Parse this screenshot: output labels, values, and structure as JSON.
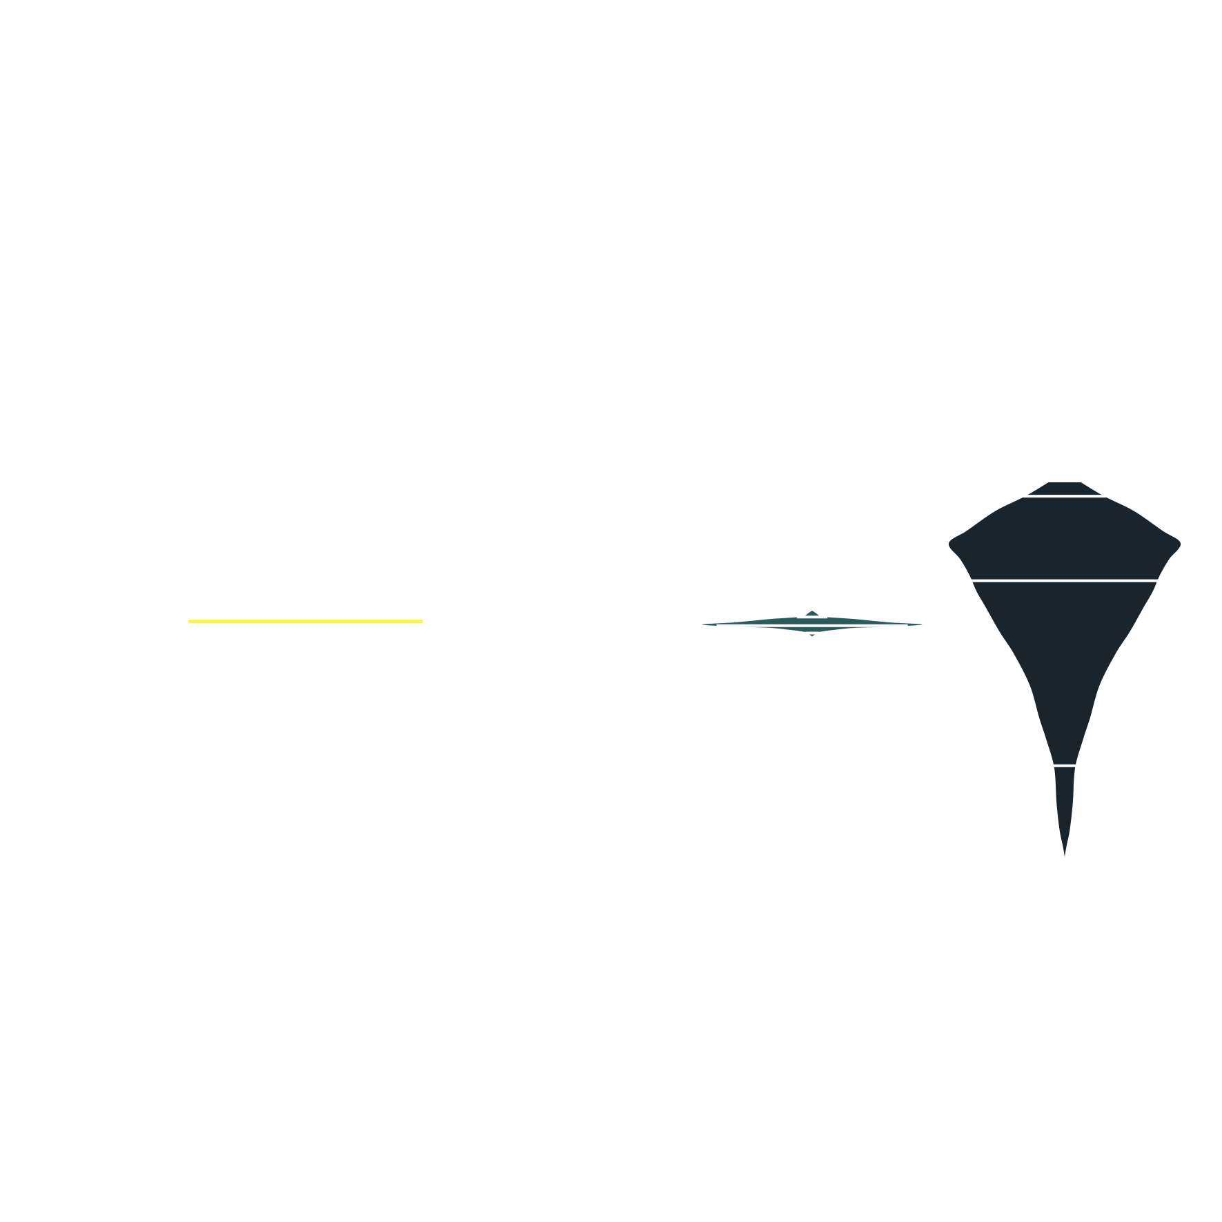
{
  "chart_data": {
    "type": "violin",
    "title": "",
    "xlabel": "",
    "ylabel": "",
    "axes_visible": false,
    "grid": false,
    "legend": "none",
    "orientation": "vertical",
    "ylim": [
      0,
      1
    ],
    "separator_color": "#ffffff",
    "violins": [
      {
        "color": "#f5f55a",
        "center": 0.49,
        "relative_width": 1.0,
        "shape": "flat",
        "quantiles": [
          0.49,
          0.49,
          0.49
        ]
      },
      {
        "color": "#2b5a5c",
        "center": 0.485,
        "relative_width": 0.95,
        "shape": [
          [
            0.5,
            0.0
          ],
          [
            0.498,
            0.03
          ],
          [
            0.495,
            0.07
          ],
          [
            0.494,
            0.12
          ],
          [
            0.492,
            0.4
          ],
          [
            0.489,
            0.7
          ],
          [
            0.487,
            1.0
          ],
          [
            0.485,
            0.7
          ],
          [
            0.484,
            0.4
          ],
          [
            0.482,
            0.2
          ],
          [
            0.48,
            0.06
          ],
          [
            0.478,
            0.03
          ],
          [
            0.476,
            0.0
          ]
        ],
        "quantiles": [
          0.494,
          0.486,
          0.479
        ]
      },
      {
        "color": "#1a242c",
        "center": 0.5,
        "relative_width": 1.0,
        "shape": [
          [
            0.62,
            0.07
          ],
          [
            0.607,
            0.17
          ],
          [
            0.593,
            0.3
          ],
          [
            0.575,
            0.42
          ],
          [
            0.563,
            0.5
          ],
          [
            0.548,
            0.45
          ],
          [
            0.533,
            0.41
          ],
          [
            0.518,
            0.38
          ],
          [
            0.503,
            0.34
          ],
          [
            0.48,
            0.28
          ],
          [
            0.46,
            0.22
          ],
          [
            0.43,
            0.15
          ],
          [
            0.4,
            0.11
          ],
          [
            0.38,
            0.08
          ],
          [
            0.353,
            0.045
          ],
          [
            0.32,
            0.035
          ],
          [
            0.295,
            0.022
          ],
          [
            0.28,
            0.008
          ],
          [
            0.27,
            0.0
          ]
        ],
        "quantiles": [
          0.607,
          0.528,
          0.355
        ]
      }
    ]
  }
}
